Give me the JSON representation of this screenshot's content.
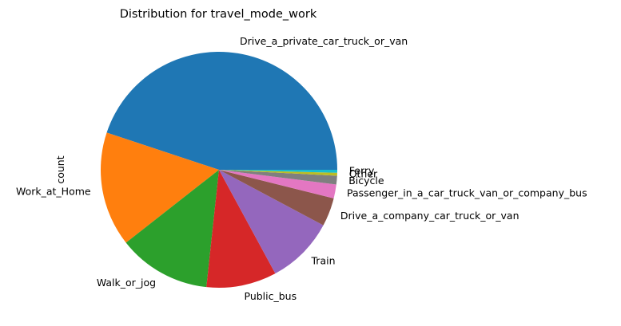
{
  "chart_data": {
    "type": "pie",
    "title": "Distribution for travel_mode_work",
    "ylabel": "count",
    "labels": [
      "Drive_a_private_car_truck_or_van",
      "Work_at_Home",
      "Walk_or_jog",
      "Public_bus",
      "Train",
      "Drive_a_company_car_truck_or_van",
      "Passenger_in_a_car_truck_van_or_company_bus",
      "Bicycle",
      "Other",
      "Ferry"
    ],
    "values": [
      44.9,
      15.7,
      12.7,
      9.6,
      9.3,
      3.9,
      1.9,
      1.2,
      0.4,
      0.4
    ],
    "colors": [
      "#1f77b4",
      "#ff7f0e",
      "#2ca02c",
      "#d62728",
      "#9467bd",
      "#8c564b",
      "#e377c2",
      "#7f7f7f",
      "#bcbd22",
      "#17becf"
    ]
  }
}
